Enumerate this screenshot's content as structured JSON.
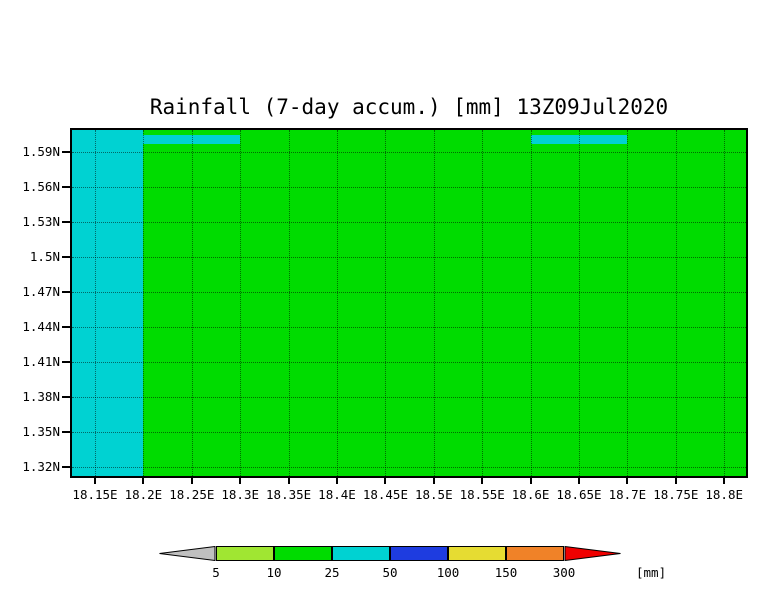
{
  "title": "Rainfall (7-day accum.) [mm] 13Z09Jul2020",
  "axes": {
    "y_labels": [
      "1.59N",
      "1.56N",
      "1.53N",
      "1.5N",
      "1.47N",
      "1.44N",
      "1.41N",
      "1.38N",
      "1.35N",
      "1.32N"
    ],
    "x_labels": [
      "18.15E",
      "18.2E",
      "18.25E",
      "18.3E",
      "18.35E",
      "18.4E",
      "18.45E",
      "18.5E",
      "18.55E",
      "18.6E",
      "18.65E",
      "18.7E",
      "18.75E",
      "18.8E"
    ]
  },
  "map": {
    "base_color": "#00dc00",
    "base_value_range": "10-25 mm",
    "regions": [
      {
        "id": "west-stripe",
        "desc": "25-50 mm band along west edge, 18.15E to 18.2E, full latitude extent",
        "value_range": "25-50 mm",
        "color": "#00d2d2"
      },
      {
        "id": "north-strip-1",
        "desc": "25-50 mm thin strip at northern edge between 18.2E and 18.3E",
        "value_range": "25-50 mm",
        "color": "#00d2d2"
      },
      {
        "id": "north-strip-2",
        "desc": "25-50 mm thin strip at northern edge between 18.6E and 18.7E",
        "value_range": "25-50 mm",
        "color": "#00d2d2"
      }
    ]
  },
  "colorbar": {
    "labels": [
      "5",
      "10",
      "25",
      "50",
      "100",
      "150",
      "300"
    ],
    "unit": "[mm]",
    "segments": [
      "#a0e632",
      "#00dc00",
      "#00d2d2",
      "#1e3ce0",
      "#e6dc32",
      "#f08228"
    ],
    "left_arrow_color": "#c0c0c0",
    "right_arrow_color": "#f00000"
  },
  "chart_data": {
    "type": "heatmap",
    "title": "Rainfall (7-day accum.) [mm] 13Z09Jul2020",
    "xlabel": "",
    "ylabel": "",
    "x_ticks": [
      "18.15E",
      "18.2E",
      "18.25E",
      "18.3E",
      "18.35E",
      "18.4E",
      "18.45E",
      "18.5E",
      "18.55E",
      "18.6E",
      "18.65E",
      "18.7E",
      "18.75E",
      "18.8E"
    ],
    "y_ticks": [
      "1.59N",
      "1.56N",
      "1.53N",
      "1.5N",
      "1.47N",
      "1.44N",
      "1.41N",
      "1.38N",
      "1.35N",
      "1.32N"
    ],
    "unit": "mm",
    "levels": [
      5,
      10,
      25,
      50,
      100,
      150,
      300
    ],
    "level_colors": [
      "#c0c0c0",
      "#a0e632",
      "#00dc00",
      "#00d2d2",
      "#1e3ce0",
      "#e6dc32",
      "#f08228",
      "#f00000"
    ],
    "grid": true,
    "legend_position": "bottom",
    "cells": [
      {
        "region": "entire domain except regions below",
        "value_range": [
          10,
          25
        ],
        "color": "#00dc00"
      },
      {
        "region": "west band 18.15E-18.2E, 1.31N-1.61N",
        "value_range": [
          25,
          50
        ],
        "color": "#00d2d2"
      },
      {
        "region": "north strip 18.2E-18.3E at ~1.60N",
        "value_range": [
          25,
          50
        ],
        "color": "#00d2d2"
      },
      {
        "region": "north strip 18.6E-18.7E at ~1.60N",
        "value_range": [
          25,
          50
        ],
        "color": "#00d2d2"
      }
    ]
  }
}
